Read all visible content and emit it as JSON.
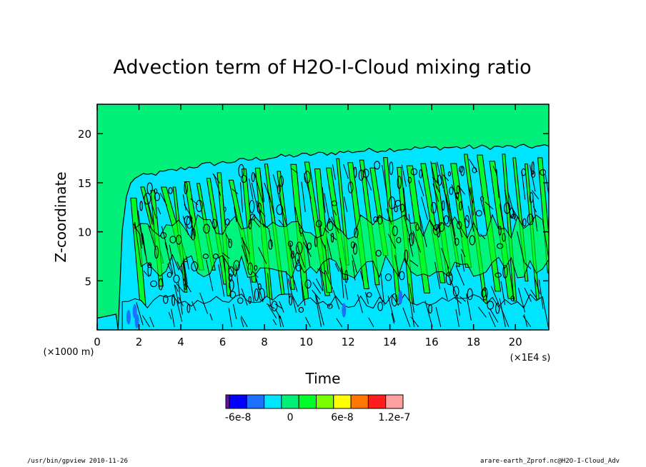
{
  "chart_data": {
    "type": "heatmap",
    "title": "Advection term of H2O-I-Cloud mixing ratio",
    "xlabel": "Time",
    "ylabel": "Z-coordinate",
    "x_unit": "(×1E4 s)",
    "y_unit": "(×1000 m)",
    "xlim": [
      0,
      21.6
    ],
    "ylim": [
      0,
      23
    ],
    "x_ticks": [
      0,
      2,
      4,
      6,
      8,
      10,
      12,
      14,
      16,
      18,
      20
    ],
    "y_ticks": [
      5,
      10,
      15,
      20
    ],
    "x_tick_labels": [
      "0",
      "2",
      "4",
      "6",
      "8",
      "10",
      "12",
      "14",
      "16",
      "18",
      "20"
    ],
    "y_tick_labels": [
      "5",
      "10",
      "15",
      "20"
    ],
    "cloud_top": [
      [
        1.0,
        4.5
      ],
      [
        1.3,
        13.0
      ],
      [
        1.7,
        15.5
      ],
      [
        3.0,
        16.0
      ],
      [
        5.0,
        16.8
      ],
      [
        7.0,
        17.3
      ],
      [
        9.0,
        17.7
      ],
      [
        11.0,
        18.0
      ],
      [
        13.0,
        18.3
      ],
      [
        15.0,
        18.5
      ],
      [
        17.0,
        18.6
      ],
      [
        21.6,
        18.7
      ]
    ],
    "colorbar": {
      "bounds": [
        "-6e-8",
        "0",
        "6e-8",
        "1.2e-7"
      ],
      "colors": [
        "#6a0dad",
        "#0000ff",
        "#1f6fff",
        "#00e5ff",
        "#00f07a",
        "#00ff2a",
        "#7aff00",
        "#ffff00",
        "#ff7700",
        "#ff1c1c",
        "#ffa0a0"
      ]
    },
    "field_colors": {
      "background": "#00f07a",
      "negative": "#00e5ff",
      "positive": "#00ff2a",
      "strong_negative": "#1f6fff"
    }
  },
  "footer": {
    "left": "/usr/bin/gpview  2010-11-26",
    "right": "arare-earth_Zprof.nc@H2O-I-Cloud_Adv"
  }
}
